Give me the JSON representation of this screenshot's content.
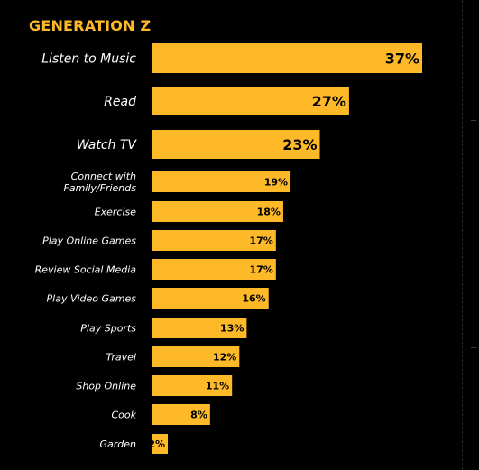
{
  "colors": {
    "background": "#000000",
    "bar": "#FDB927",
    "title": "#FDB927",
    "label": "#FFFFFF",
    "value_text": "#000000"
  },
  "chart_data": {
    "type": "bar",
    "orientation": "horizontal",
    "title": "GENERATION Z",
    "xlabel": "",
    "ylabel": "",
    "xlim": [
      0,
      37
    ],
    "grid": false,
    "legend": "none",
    "value_suffix": "%",
    "categories": [
      "Listen to Music",
      "Read",
      "Watch TV",
      "Connect with Family/Friends",
      "Exercise",
      "Play Online Games",
      "Review Social Media",
      "Play Video Games",
      "Play Sports",
      "Travel",
      "Shop Online",
      "Cook",
      "Garden"
    ],
    "category_lines": [
      [
        "Listen to Music"
      ],
      [
        "Read"
      ],
      [
        "Watch TV"
      ],
      [
        "Connect with",
        "Family/Friends"
      ],
      [
        "Exercise"
      ],
      [
        "Play Online Games"
      ],
      [
        "Review Social Media"
      ],
      [
        "Play Video Games"
      ],
      [
        "Play Sports"
      ],
      [
        "Travel"
      ],
      [
        "Shop Online"
      ],
      [
        "Cook"
      ],
      [
        "Garden"
      ]
    ],
    "values": [
      37,
      27,
      23,
      19,
      18,
      17,
      17,
      16,
      13,
      12,
      11,
      8,
      2
    ]
  }
}
